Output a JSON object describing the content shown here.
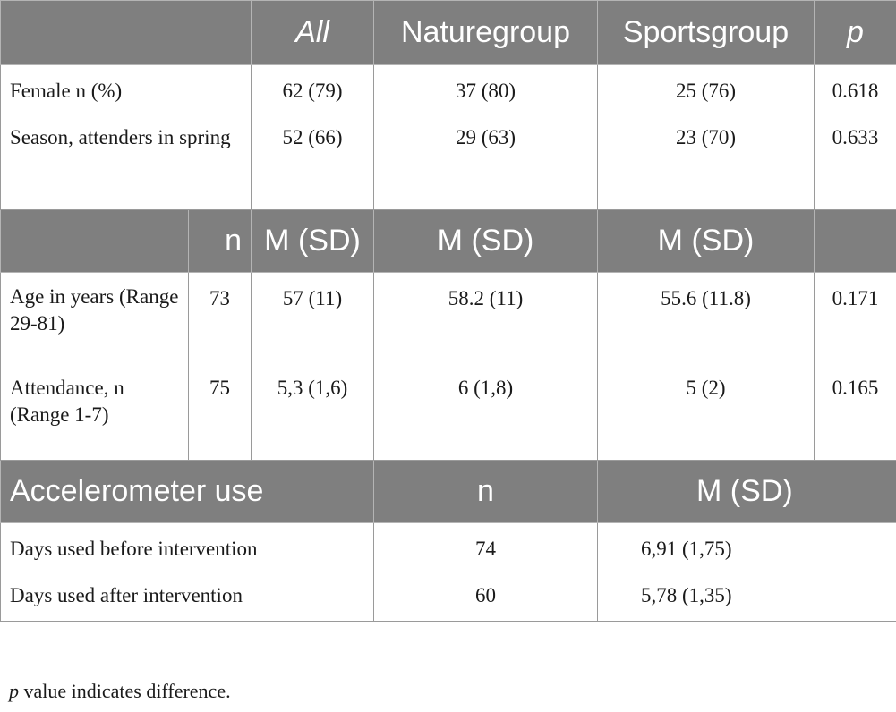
{
  "header1": {
    "all": "All",
    "naturegroup": "Naturegroup",
    "sportsgroup": "Sportsgroup",
    "p": "p"
  },
  "section1_rows": [
    {
      "label": "Female n (%)",
      "all": "62 (79)",
      "nature": "37 (80)",
      "sports": "25 (76)",
      "p": "0.618"
    },
    {
      "label": "Season, attenders in spring",
      "all": "52 (66)",
      "nature": "29 (63)",
      "sports": "23 (70)",
      "p": "0.633"
    }
  ],
  "header2": {
    "n": "n",
    "all": "M (SD)",
    "nature": "M (SD)",
    "sports": "M (SD)"
  },
  "section2_rows": [
    {
      "label": "Age in years (Range 29-81)",
      "n": "73",
      "all": "57 (11)",
      "nature": "58.2 (11)",
      "sports": "55.6 (11.8)",
      "p": "0.171"
    },
    {
      "label": "Attendance, n (Range 1-7)",
      "n": "75",
      "all": "5,3 (1,6)",
      "nature": "6 (1,8)",
      "sports": "5 (2)",
      "p": "0.165"
    }
  ],
  "header3": {
    "title": "Accelerometer use",
    "n": "n",
    "msd": "M (SD)"
  },
  "section3_rows": [
    {
      "label": "Days used before intervention",
      "n": "74",
      "msd": "6,91 (1,75)"
    },
    {
      "label": "Days used after intervention",
      "n": "60",
      "msd": "5,78 (1,35)"
    }
  ],
  "footnote": {
    "p": "p",
    "text": " value indicates difference."
  }
}
